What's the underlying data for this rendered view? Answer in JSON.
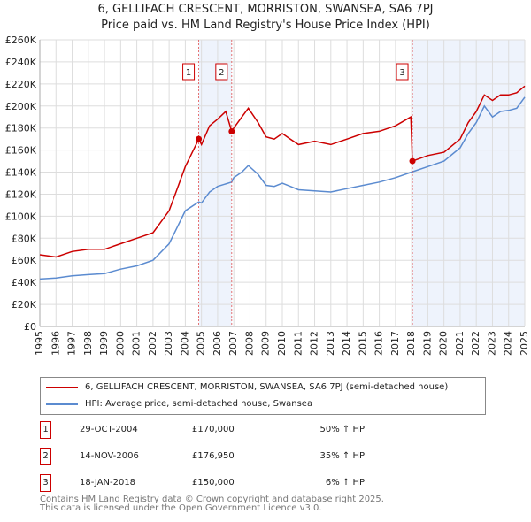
{
  "chart_data": {
    "type": "line",
    "title": "6, GELLIFACH CRESCENT, MORRISTON, SWANSEA, SA6 7PJ",
    "subtitle": "Price paid vs. HM Land Registry's House Price Index (HPI)",
    "xlim": [
      1995,
      2025
    ],
    "ylim": [
      0,
      260000
    ],
    "x_ticks": [
      "1995",
      "1996",
      "1997",
      "1998",
      "1999",
      "2000",
      "2001",
      "2002",
      "2003",
      "2004",
      "2005",
      "2006",
      "2007",
      "2008",
      "2009",
      "2010",
      "2011",
      "2012",
      "2013",
      "2014",
      "2015",
      "2016",
      "2017",
      "2018",
      "2019",
      "2020",
      "2021",
      "2022",
      "2023",
      "2024",
      "2025"
    ],
    "y_ticks": [
      "£0",
      "£20K",
      "£40K",
      "£60K",
      "£80K",
      "£100K",
      "£120K",
      "£140K",
      "£160K",
      "£180K",
      "£200K",
      "£220K",
      "£240K",
      "£260K"
    ],
    "grid": true,
    "series": [
      {
        "name": "6, GELLIFACH CRESCENT, MORRISTON, SWANSEA, SA6 7PJ (semi-detached house)",
        "color": "#cc0000",
        "x": [
          1995,
          1996,
          1997,
          1998,
          1999,
          2000,
          2001,
          2002,
          2003,
          2003.5,
          2004,
          2004.83,
          2005,
          2005.5,
          2006,
          2006.5,
          2006.87,
          2007,
          2007.5,
          2007.9,
          2008.5,
          2009,
          2009.5,
          2010,
          2010.5,
          2011,
          2012,
          2013,
          2014,
          2015,
          2016,
          2017,
          2017.95,
          2018.05,
          2019,
          2020,
          2021,
          2021.5,
          2022,
          2022.5,
          2023,
          2023.5,
          2024,
          2024.5,
          2025
        ],
        "y": [
          65000,
          63000,
          68000,
          70000,
          70000,
          75000,
          80000,
          85000,
          105000,
          125000,
          145000,
          170000,
          165000,
          182000,
          188000,
          195000,
          176950,
          180000,
          190000,
          198000,
          185000,
          172000,
          170000,
          175000,
          170000,
          165000,
          168000,
          165000,
          170000,
          175000,
          177000,
          182000,
          190000,
          150000,
          155000,
          158000,
          170000,
          185000,
          195000,
          210000,
          205000,
          210000,
          210000,
          212000,
          218000
        ]
      },
      {
        "name": "HPI: Average price, semi-detached house, Swansea",
        "color": "#5b8bd0",
        "x": [
          1995,
          1996,
          1997,
          1998,
          1999,
          2000,
          2001,
          2002,
          2003,
          2003.5,
          2004,
          2004.83,
          2005,
          2005.5,
          2006,
          2006.87,
          2007,
          2007.5,
          2007.9,
          2008.5,
          2009,
          2009.5,
          2010,
          2010.5,
          2011,
          2012,
          2013,
          2014,
          2015,
          2016,
          2017,
          2018,
          2019,
          2020,
          2021,
          2021.5,
          2022,
          2022.5,
          2023,
          2023.5,
          2024,
          2024.5,
          2025
        ],
        "y": [
          43000,
          44000,
          46000,
          47000,
          48000,
          52000,
          55000,
          60000,
          75000,
          90000,
          105000,
          113000,
          112000,
          122000,
          127000,
          131000,
          135000,
          140000,
          146000,
          138000,
          128000,
          127000,
          130000,
          127000,
          124000,
          123000,
          122000,
          125000,
          128000,
          131000,
          135000,
          140000,
          145000,
          150000,
          162000,
          175000,
          185000,
          200000,
          190000,
          195000,
          196000,
          198000,
          208000
        ]
      }
    ],
    "sales": [
      {
        "label": "1",
        "x": 2004.83,
        "price": 170000,
        "date": "29-OCT-2004",
        "price_text": "£170,000",
        "hpi": "50% ↑ HPI"
      },
      {
        "label": "2",
        "x": 2006.87,
        "price": 176950,
        "date": "14-NOV-2006",
        "price_text": "£176,950",
        "hpi": "35% ↑ HPI"
      },
      {
        "label": "3",
        "x": 2018.05,
        "price": 150000,
        "date": "18-JAN-2018",
        "price_text": "£150,000",
        "hpi": "6% ↑ HPI"
      }
    ],
    "shaded": [
      [
        2004.83,
        2006.87
      ],
      [
        2018.05,
        2025
      ]
    ]
  },
  "footer": {
    "line1": "Contains HM Land Registry data © Crown copyright and database right 2025.",
    "line2": "This data is licensed under the Open Government Licence v3.0."
  }
}
